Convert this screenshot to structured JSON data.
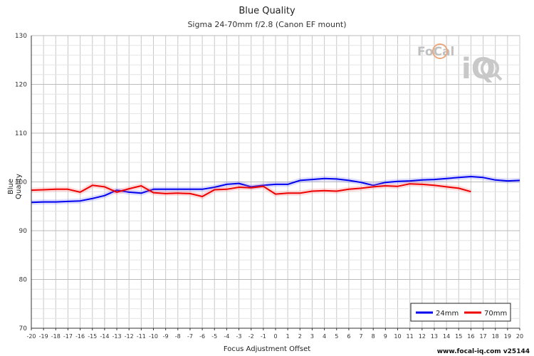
{
  "logo": {
    "text_top": "FoCal",
    "text_bottom": "iQ"
  },
  "watermark": "www.focal-iq.com  v25144",
  "chart_data": {
    "type": "line",
    "title": "Blue Quality",
    "subtitle": "Sigma 24-70mm f/2.8 (Canon EF mount)",
    "xlabel": "Focus Adjustment Offset",
    "ylabel": "Blue Quality",
    "xlim": [
      -20,
      20
    ],
    "ylim": [
      70,
      130
    ],
    "x_ticks": [
      -20,
      -19,
      -18,
      -17,
      -16,
      -15,
      -14,
      -13,
      -12,
      -11,
      -10,
      -9,
      -8,
      -7,
      -6,
      -5,
      -4,
      -3,
      -2,
      -1,
      0,
      1,
      2,
      3,
      4,
      5,
      6,
      7,
      8,
      9,
      10,
      11,
      12,
      13,
      14,
      15,
      16,
      17,
      18,
      19,
      20
    ],
    "y_ticks": [
      70,
      80,
      90,
      100,
      110,
      120,
      130
    ],
    "grid": true,
    "legend_position": "bottom-right",
    "series": [
      {
        "name": "24mm",
        "color": "#0000ee",
        "x": [
          -20,
          -19,
          -18,
          -17,
          -16,
          -15,
          -14,
          -13,
          -12,
          -11,
          -10,
          -9,
          -8,
          -7,
          -6,
          -5,
          -4,
          -3,
          -2,
          -1,
          0,
          1,
          2,
          3,
          4,
          5,
          6,
          7,
          8,
          9,
          10,
          11,
          12,
          13,
          14,
          15,
          16,
          17,
          18,
          19,
          20
        ],
        "y": [
          95.8,
          95.9,
          95.9,
          96.0,
          96.1,
          96.6,
          97.2,
          98.3,
          97.9,
          97.7,
          98.5,
          98.5,
          98.5,
          98.5,
          98.5,
          98.9,
          99.5,
          99.7,
          99.0,
          99.3,
          99.5,
          99.5,
          100.3,
          100.5,
          100.7,
          100.6,
          100.3,
          99.9,
          99.3,
          99.9,
          100.1,
          100.2,
          100.4,
          100.5,
          100.7,
          100.9,
          101.1,
          100.9,
          100.4,
          100.2,
          100.3
        ]
      },
      {
        "name": "70mm",
        "color": "#ee0000",
        "x": [
          -20,
          -19,
          -18,
          -17,
          -16,
          -15,
          -14,
          -13,
          -12,
          -11,
          -10,
          -9,
          -8,
          -7,
          -6,
          -5,
          -4,
          -3,
          -2,
          -1,
          0,
          1,
          2,
          3,
          4,
          5,
          6,
          7,
          8,
          9,
          10,
          11,
          12,
          13,
          14,
          15,
          16
        ],
        "y": [
          98.3,
          98.4,
          98.5,
          98.5,
          97.9,
          99.3,
          99.0,
          97.9,
          98.6,
          99.2,
          97.8,
          97.6,
          97.7,
          97.6,
          97.0,
          98.4,
          98.5,
          98.9,
          98.8,
          99.1,
          97.5,
          97.7,
          97.7,
          98.1,
          98.2,
          98.1,
          98.5,
          98.7,
          99.0,
          99.2,
          99.1,
          99.6,
          99.5,
          99.3,
          99.0,
          98.7,
          98.0
        ]
      }
    ]
  }
}
